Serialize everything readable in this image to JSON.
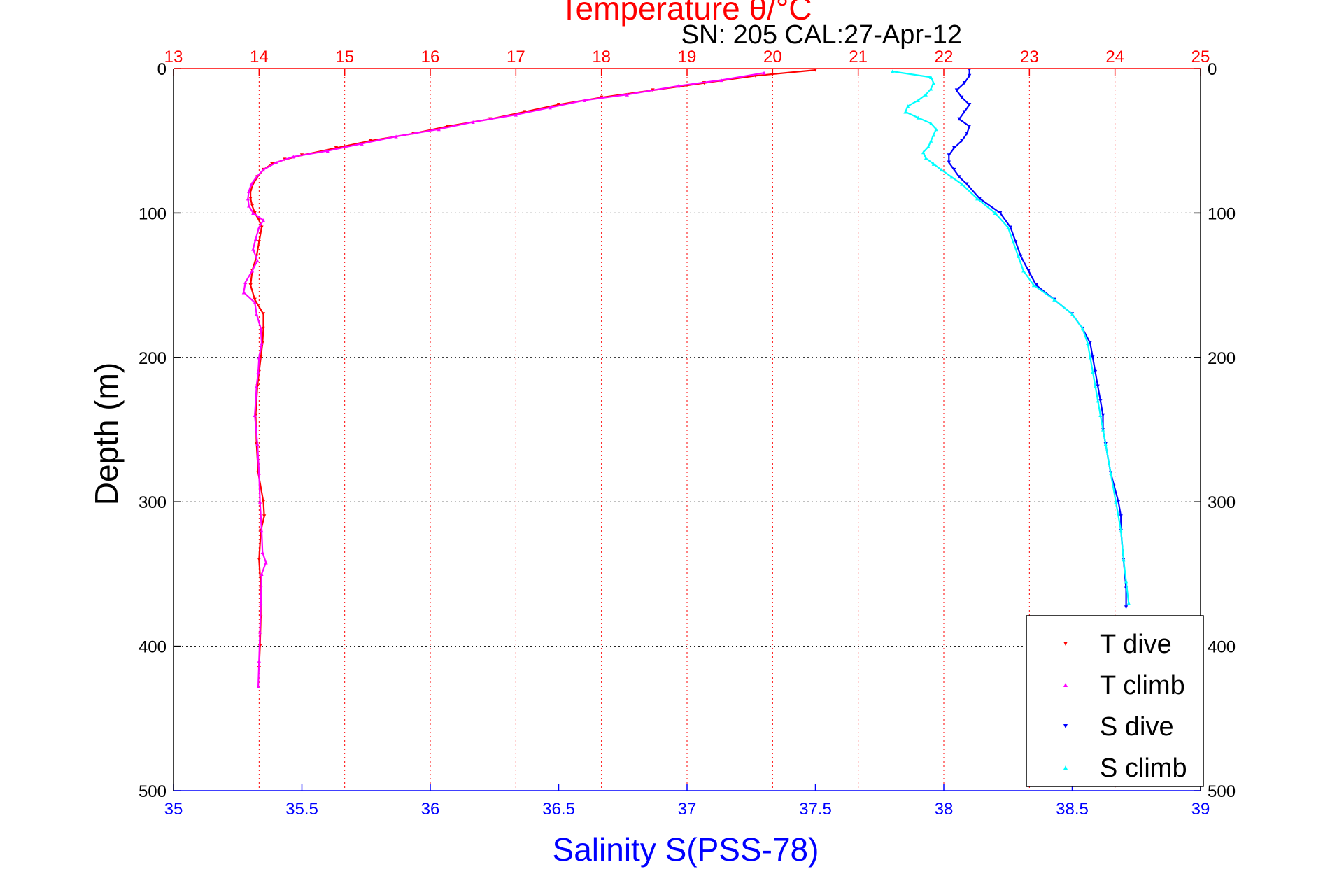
{
  "chart_data": {
    "type": "scatter",
    "title": "Temperature θ/°C",
    "subtitle": "SN: 205  CAL:27-Apr-12",
    "xlabel_bottom": "Salinity S(PSS-78)",
    "xlabel_top": "Temperature θ/°C",
    "ylabel": "Depth (m)",
    "ylim": [
      0,
      500
    ],
    "y_reversed": true,
    "xlim_bottom": [
      35,
      39
    ],
    "xlim_top": [
      13,
      25
    ],
    "ticks_bottom": [
      "35",
      "35.5",
      "36",
      "36.5",
      "37",
      "37.5",
      "38",
      "38.5",
      "39"
    ],
    "ticks_top": [
      "13",
      "14",
      "15",
      "16",
      "17",
      "18",
      "19",
      "20",
      "21",
      "22",
      "23",
      "24",
      "25"
    ],
    "ticks_y": [
      "0",
      "100",
      "200",
      "300",
      "400",
      "500"
    ],
    "grid": true,
    "legend_position": "bottom-right",
    "colors": {
      "temperature_axis": "#ff0000",
      "salinity_axis": "#0000ff",
      "grid": "#000000"
    },
    "series": [
      {
        "name": "T dive",
        "axis": "top",
        "color": "#ff0000",
        "marker": "triangle-down",
        "depth": [
          1,
          5,
          10,
          15,
          20,
          25,
          30,
          35,
          40,
          45,
          50,
          55,
          60,
          63,
          66,
          70,
          75,
          80,
          85,
          90,
          95,
          100,
          105,
          110,
          120,
          130,
          140,
          150,
          160,
          170,
          180,
          190,
          200,
          210,
          220,
          240,
          260,
          280,
          300,
          310,
          320,
          340,
          360,
          380,
          400,
          415
        ],
        "values": [
          20.5,
          19.8,
          19.2,
          18.6,
          18.0,
          17.5,
          17.1,
          16.7,
          16.2,
          15.8,
          15.3,
          14.9,
          14.5,
          14.3,
          14.15,
          14.05,
          13.98,
          13.93,
          13.9,
          13.9,
          13.92,
          13.95,
          14.0,
          14.03,
          14.0,
          13.97,
          13.92,
          13.9,
          13.95,
          14.05,
          14.05,
          14.04,
          14.02,
          14.0,
          13.98,
          13.96,
          13.97,
          13.99,
          14.05,
          14.06,
          14.02,
          14.0,
          14.02,
          14.02,
          14.01,
          14.0
        ]
      },
      {
        "name": "T climb",
        "axis": "top",
        "color": "#ff00ff",
        "marker": "triangle-up",
        "depth": [
          3,
          8,
          12,
          18,
          22,
          27,
          32,
          37,
          42,
          47,
          52,
          57,
          61,
          65,
          70,
          75,
          80,
          85,
          90,
          95,
          100,
          105,
          110,
          118,
          125,
          133,
          140,
          148,
          155,
          162,
          170,
          180,
          190,
          200,
          210,
          220,
          240,
          260,
          280,
          300,
          320,
          335,
          342,
          350,
          370,
          390,
          410,
          428
        ],
        "values": [
          19.9,
          19.4,
          18.9,
          18.3,
          17.8,
          17.4,
          17.0,
          16.5,
          16.1,
          15.6,
          15.2,
          14.8,
          14.4,
          14.2,
          14.05,
          13.97,
          13.91,
          13.88,
          13.87,
          13.88,
          13.93,
          14.05,
          14.0,
          13.96,
          13.93,
          13.98,
          13.92,
          13.84,
          13.82,
          13.95,
          13.97,
          14.02,
          14.03,
          14.0,
          13.99,
          13.97,
          13.95,
          13.98,
          14.0,
          14.01,
          14.03,
          14.04,
          14.08,
          14.03,
          14.02,
          14.01,
          14.0,
          13.99
        ]
      },
      {
        "name": "S dive",
        "axis": "bottom",
        "color": "#0000ff",
        "marker": "triangle-down",
        "depth": [
          1,
          5,
          10,
          15,
          20,
          25,
          30,
          35,
          40,
          45,
          50,
          55,
          60,
          65,
          70,
          75,
          80,
          90,
          100,
          110,
          120,
          130,
          140,
          150,
          160,
          170,
          180,
          190,
          200,
          210,
          220,
          230,
          240,
          250,
          260,
          280,
          300,
          310,
          320,
          340,
          360,
          373
        ],
        "values": [
          38.1,
          38.1,
          38.08,
          38.05,
          38.07,
          38.1,
          38.08,
          38.06,
          38.1,
          38.09,
          38.07,
          38.04,
          38.02,
          38.02,
          38.04,
          38.06,
          38.09,
          38.14,
          38.22,
          38.26,
          38.28,
          38.3,
          38.33,
          38.36,
          38.43,
          38.5,
          38.54,
          38.57,
          38.58,
          38.59,
          38.6,
          38.61,
          38.62,
          38.62,
          38.63,
          38.65,
          38.68,
          38.69,
          38.69,
          38.7,
          38.71,
          38.71
        ]
      },
      {
        "name": "S climb",
        "axis": "bottom",
        "color": "#00ffff",
        "marker": "triangle-up",
        "depth": [
          2,
          6,
          10,
          14,
          18,
          22,
          26,
          30,
          34,
          38,
          42,
          46,
          50,
          54,
          58,
          62,
          66,
          70,
          75,
          80,
          90,
          100,
          110,
          120,
          130,
          140,
          150,
          160,
          170,
          180,
          190,
          200,
          210,
          220,
          230,
          240,
          250,
          260,
          280,
          300,
          320,
          340,
          355,
          370
        ],
        "values": [
          37.8,
          37.95,
          37.96,
          37.95,
          37.93,
          37.9,
          37.86,
          37.85,
          37.9,
          37.95,
          37.97,
          37.96,
          37.95,
          37.94,
          37.92,
          37.93,
          37.96,
          37.99,
          38.03,
          38.07,
          38.13,
          38.2,
          38.25,
          38.27,
          38.29,
          38.31,
          38.35,
          38.43,
          38.5,
          38.54,
          38.56,
          38.57,
          38.58,
          38.59,
          38.6,
          38.61,
          38.62,
          38.63,
          38.65,
          38.67,
          38.69,
          38.7,
          38.71,
          38.72
        ]
      }
    ]
  }
}
